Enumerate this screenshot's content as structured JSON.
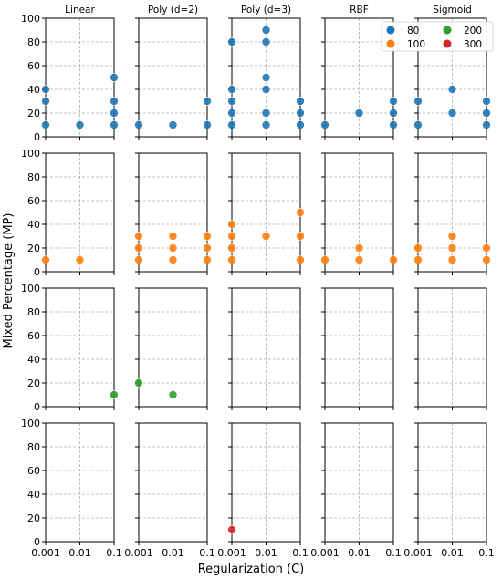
{
  "chart_data": {
    "type": "scatter",
    "layout": "facet-grid",
    "xlabel": "Regularization (C)",
    "ylabel": "Mixed Percentage (MP)",
    "columns": [
      "Linear",
      "Poly (d=2)",
      "Poly (d=3)",
      "RBF",
      "Sigmoid"
    ],
    "x_scale": "log",
    "x_ticks": [
      0.001,
      0.01,
      0.1
    ],
    "x_tick_labels": [
      "0.001",
      "0.01",
      "0.1"
    ],
    "ylim": [
      0,
      100
    ],
    "y_ticks": [
      0,
      20,
      40,
      60,
      80,
      100
    ],
    "grid": true,
    "legend": {
      "position": "top-right",
      "entries": [
        {
          "label": "80",
          "color": "#1f77b4"
        },
        {
          "label": "200",
          "color": "#2ca02c"
        },
        {
          "label": "100",
          "color": "#ff7f0e"
        },
        {
          "label": "300",
          "color": "#d62728"
        }
      ]
    },
    "rows": [
      {
        "series": "80",
        "color": "#1f77b4",
        "panels": [
          [
            [
              0.001,
              10
            ],
            [
              0.001,
              30
            ],
            [
              0.001,
              40
            ],
            [
              0.01,
              10
            ],
            [
              0.1,
              10
            ],
            [
              0.1,
              20
            ],
            [
              0.1,
              30
            ],
            [
              0.1,
              50
            ]
          ],
          [
            [
              0.001,
              10
            ],
            [
              0.01,
              10
            ],
            [
              0.1,
              10
            ],
            [
              0.1,
              30
            ]
          ],
          [
            [
              0.001,
              10
            ],
            [
              0.001,
              20
            ],
            [
              0.001,
              30
            ],
            [
              0.001,
              40
            ],
            [
              0.001,
              80
            ],
            [
              0.01,
              10
            ],
            [
              0.01,
              20
            ],
            [
              0.01,
              40
            ],
            [
              0.01,
              50
            ],
            [
              0.01,
              80
            ],
            [
              0.01,
              90
            ],
            [
              0.1,
              10
            ],
            [
              0.1,
              20
            ],
            [
              0.1,
              30
            ]
          ],
          [
            [
              0.001,
              10
            ],
            [
              0.01,
              20
            ],
            [
              0.1,
              10
            ],
            [
              0.1,
              20
            ],
            [
              0.1,
              30
            ]
          ],
          [
            [
              0.001,
              10
            ],
            [
              0.001,
              30
            ],
            [
              0.01,
              20
            ],
            [
              0.01,
              40
            ],
            [
              0.1,
              10
            ],
            [
              0.1,
              20
            ],
            [
              0.1,
              30
            ]
          ]
        ]
      },
      {
        "series": "100",
        "color": "#ff7f0e",
        "panels": [
          [
            [
              0.001,
              10
            ],
            [
              0.01,
              10
            ]
          ],
          [
            [
              0.001,
              10
            ],
            [
              0.001,
              20
            ],
            [
              0.001,
              30
            ],
            [
              0.01,
              10
            ],
            [
              0.01,
              20
            ],
            [
              0.01,
              30
            ],
            [
              0.1,
              10
            ],
            [
              0.1,
              20
            ],
            [
              0.1,
              30
            ]
          ],
          [
            [
              0.001,
              10
            ],
            [
              0.001,
              20
            ],
            [
              0.001,
              30
            ],
            [
              0.001,
              40
            ],
            [
              0.01,
              30
            ],
            [
              0.1,
              10
            ],
            [
              0.1,
              30
            ],
            [
              0.1,
              50
            ]
          ],
          [
            [
              0.001,
              10
            ],
            [
              0.01,
              10
            ],
            [
              0.01,
              20
            ],
            [
              0.1,
              10
            ]
          ],
          [
            [
              0.001,
              10
            ],
            [
              0.001,
              20
            ],
            [
              0.01,
              10
            ],
            [
              0.01,
              20
            ],
            [
              0.01,
              30
            ],
            [
              0.1,
              10
            ],
            [
              0.1,
              20
            ]
          ]
        ]
      },
      {
        "series": "200",
        "color": "#2ca02c",
        "panels": [
          [
            [
              0.1,
              10
            ]
          ],
          [
            [
              0.001,
              20
            ],
            [
              0.01,
              10
            ]
          ],
          [],
          [],
          []
        ]
      },
      {
        "series": "300",
        "color": "#d62728",
        "panels": [
          [],
          [],
          [
            [
              0.001,
              10
            ]
          ],
          [],
          []
        ]
      }
    ]
  }
}
